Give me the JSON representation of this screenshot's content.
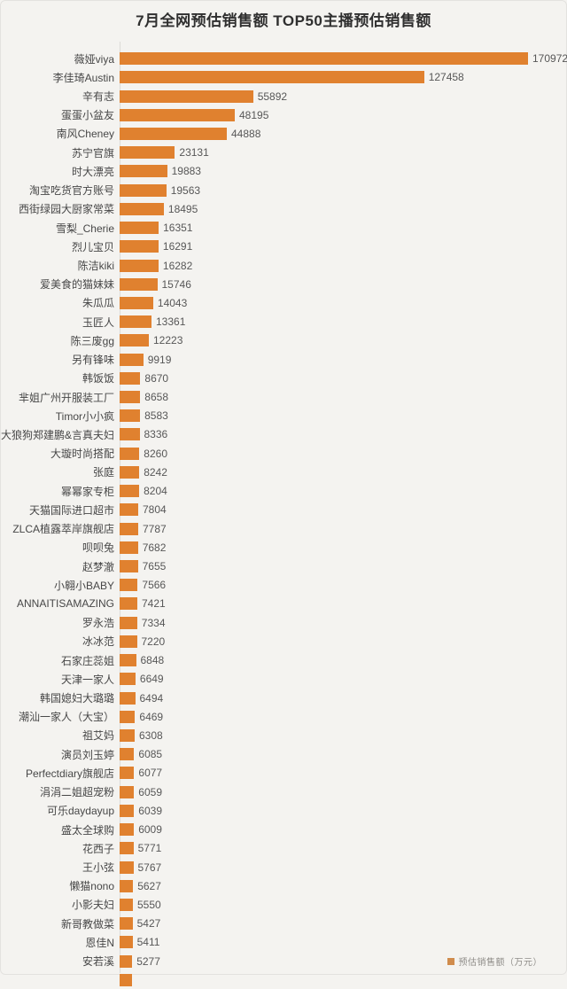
{
  "page": {
    "background_color": "#f4f3f0"
  },
  "header": {
    "title": "7月全网预估销售额 TOP50主播预估销售额"
  },
  "legend": {
    "label": "预估销售额（万元）",
    "swatch_color": "#e0812f"
  },
  "chart_data": {
    "type": "bar",
    "orientation": "horizontal",
    "title": "7月全网预估销售额 TOP50主播预估销售额",
    "unit": "万元",
    "bar_color": "#e0812f",
    "xlim": [
      0,
      170972
    ],
    "grid": false,
    "legend_position": "bottom-right",
    "legend_entries": [
      "预估销售额（万元）"
    ],
    "value_labels_shown": true,
    "partial_50th_row_cut_off_at_bottom": true,
    "categories": [
      "薇娅viya",
      "李佳琦Austin",
      "辛有志",
      "蛋蛋小盆友",
      "南风Cheney",
      "苏宁官旗",
      "时大漂亮",
      "淘宝吃货官方账号",
      "西街绿园大厨家常菜",
      "雪梨_Cherie",
      "烈儿宝贝",
      "陈洁kiki",
      "爱美食的猫妹妹",
      "朱瓜瓜",
      "玉匠人",
      "陈三废gg",
      "另有锋味",
      "韩饭饭",
      "芈姐广州开服装工厂",
      "Timor小小疯",
      "大狼狗郑建鹏&言真夫妇",
      "大璇时尚搭配",
      "张庭",
      "幂幂家专柜",
      "天猫国际进口超市",
      "ZLCA植露萃岸旗舰店",
      "呗呗兔",
      "赵梦澈",
      "小翱小BABY",
      "ANNAITISAMAZING",
      "罗永浩",
      "冰冰范",
      "石家庄蕊姐",
      "天津一家人",
      "韩国媳妇大璐璐",
      "潮汕一家人（大宝）",
      "祖艾妈",
      "演员刘玉婷",
      "Perfectdiary旗舰店",
      "涓涓二姐超宠粉",
      "可乐daydayup",
      "盛太全球购",
      "花西子",
      "王小弦",
      "懒猫nono",
      "小影夫妇",
      "新哥教做菜",
      "恩佳N",
      "安若溪"
    ],
    "values": [
      170972,
      127458,
      55892,
      48195,
      44888,
      23131,
      19883,
      19563,
      18495,
      16351,
      16291,
      16282,
      15746,
      14043,
      13361,
      12223,
      9919,
      8670,
      8658,
      8583,
      8336,
      8260,
      8242,
      8204,
      7804,
      7787,
      7682,
      7655,
      7566,
      7421,
      7334,
      7220,
      6848,
      6649,
      6494,
      6469,
      6308,
      6085,
      6077,
      6059,
      6039,
      6009,
      5771,
      5767,
      5627,
      5550,
      5427,
      5411,
      5277
    ]
  }
}
